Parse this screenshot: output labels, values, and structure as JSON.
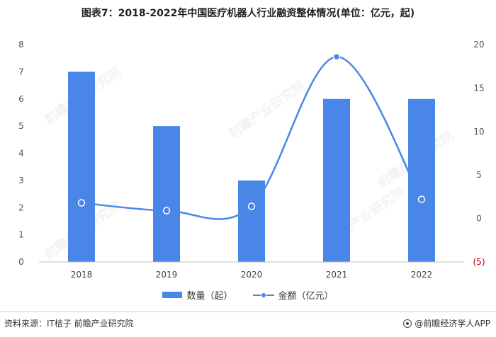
{
  "title": "图表7：2018-2022年中国医疗机器人行业融资整体情况(单位：亿元，起)",
  "source": "资料来源：IT桔子 前瞻产业研究院",
  "brand": "@前瞻经济学人APP",
  "watermark": "前瞻产业研究院",
  "colors": {
    "bar": "#4a86e8",
    "line": "#4a86e8",
    "negative_tick": "#c00000"
  },
  "chart_data": {
    "type": "bar",
    "categories": [
      "2018",
      "2019",
      "2020",
      "2021",
      "2022"
    ],
    "series": [
      {
        "name": "数量（起）",
        "type": "bar",
        "axis": "left",
        "values": [
          7,
          5,
          3,
          6,
          6
        ]
      },
      {
        "name": "金额（亿元）",
        "type": "line",
        "axis": "right",
        "values": [
          1.8,
          0.9,
          1.4,
          18.6,
          2.2
        ]
      }
    ],
    "y_left": {
      "min": 0,
      "max": 8,
      "ticks": [
        "0",
        "1",
        "2",
        "3",
        "4",
        "5",
        "6",
        "7",
        "8"
      ]
    },
    "y_right": {
      "min": -5,
      "max": 20,
      "ticks": [
        "(5)",
        "0",
        "5",
        "10",
        "15",
        "20"
      ]
    },
    "grid": false,
    "legend_position": "bottom"
  }
}
